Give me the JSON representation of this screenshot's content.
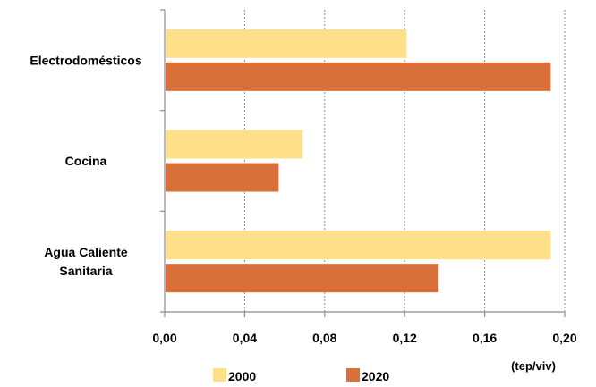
{
  "chart_data": {
    "type": "bar",
    "orientation": "horizontal",
    "categories": [
      [
        "Electrodomésticos"
      ],
      [
        "Cocina"
      ],
      [
        "Agua Caliente",
        "Sanitaria"
      ]
    ],
    "series": [
      {
        "name": "2000",
        "color": "#FFE08A",
        "values": [
          0.121,
          0.069,
          0.193
        ]
      },
      {
        "name": "2020",
        "color": "#D9703A",
        "values": [
          0.193,
          0.057,
          0.137
        ]
      }
    ],
    "xlim": [
      0,
      0.2
    ],
    "xticks": [
      "0,00",
      "0,04",
      "0,08",
      "0,12",
      "0,16",
      "0,20"
    ],
    "xtick_values": [
      0,
      0.04,
      0.08,
      0.12,
      0.16,
      0.2
    ],
    "xlabel": "(tep/viv)",
    "grid": "vertical dashed",
    "legend_position": "bottom"
  }
}
